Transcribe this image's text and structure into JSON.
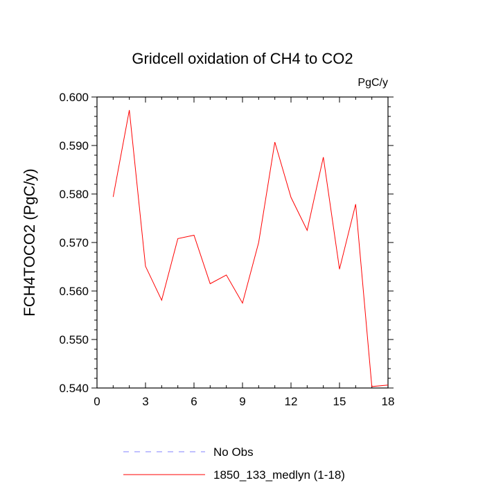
{
  "chart_data": {
    "type": "line",
    "title": "Gridcell oxidation of CH4 to CO2",
    "units": "PgC/y",
    "xlabel": "",
    "ylabel": "FCH4TOCO2  (PgC/y)",
    "xlim": [
      0,
      18
    ],
    "ylim": [
      0.54,
      0.6
    ],
    "xticks": [
      0,
      3,
      6,
      9,
      12,
      15,
      18
    ],
    "xtick_labels": [
      "0",
      "3",
      "6",
      "9",
      "12",
      "15",
      "18"
    ],
    "yticks": [
      0.54,
      0.55,
      0.56,
      0.57,
      0.58,
      0.59,
      0.6
    ],
    "ytick_labels": [
      "0.540",
      "0.550",
      "0.560",
      "0.570",
      "0.580",
      "0.590",
      "0.600"
    ],
    "grid": false,
    "legend_position": "bottom",
    "series": [
      {
        "name": "1850_133_medlyn (1-18)",
        "color": "#ff0000",
        "dash": "solid",
        "x": [
          1,
          2,
          3,
          4,
          5,
          6,
          7,
          8,
          9,
          10,
          11,
          12,
          13,
          14,
          15,
          16,
          17,
          18
        ],
        "values": [
          0.5794,
          0.5973,
          0.5651,
          0.5581,
          0.5708,
          0.5715,
          0.5615,
          0.5633,
          0.5575,
          0.57,
          0.5907,
          0.5793,
          0.5725,
          0.5876,
          0.5645,
          0.5779,
          0.5403,
          0.5406
        ]
      }
    ],
    "legend": [
      {
        "label": "No Obs",
        "color": "#8080ff",
        "dash": "dashed"
      },
      {
        "label": "1850_133_medlyn (1-18)",
        "color": "#ff0000",
        "dash": "solid"
      }
    ]
  }
}
